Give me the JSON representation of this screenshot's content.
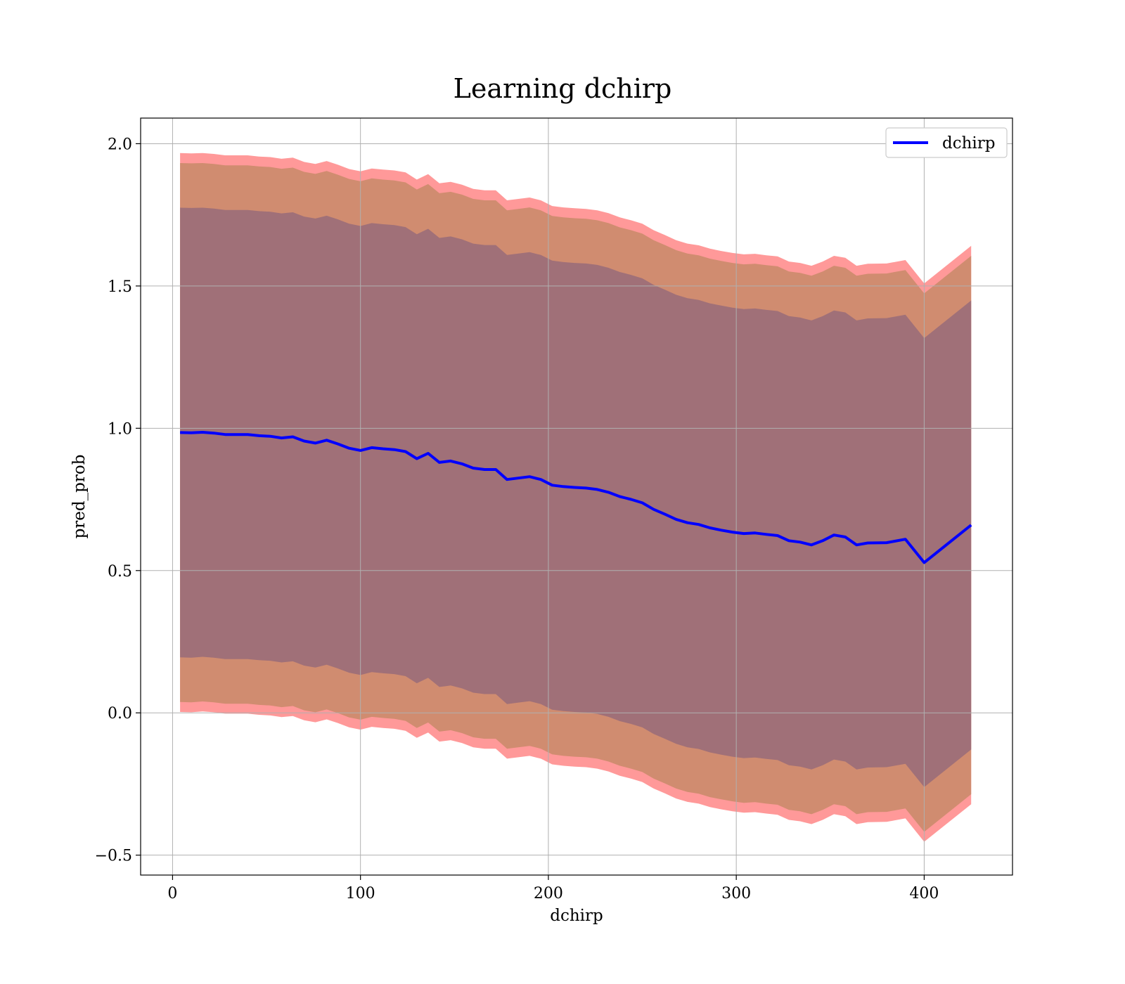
{
  "chart_data": {
    "type": "line",
    "title": "Learning dchirp",
    "xlabel": "dchirp",
    "ylabel": "pred_prob",
    "xlim": [
      -17,
      447
    ],
    "ylim": [
      -0.57,
      2.09
    ],
    "xticks": [
      0,
      100,
      200,
      300,
      400
    ],
    "xtick_labels": [
      "0",
      "100",
      "200",
      "300",
      "400"
    ],
    "yticks": [
      -0.5,
      0.0,
      0.5,
      1.0,
      1.5,
      2.0
    ],
    "ytick_labels": [
      "−0.5",
      "0.0",
      "0.5",
      "1.0",
      "1.5",
      "2.0"
    ],
    "grid": true,
    "legend": {
      "position": "top-right",
      "entries": [
        "dchirp"
      ]
    },
    "x": [
      4,
      10,
      16,
      22,
      28,
      34,
      40,
      46,
      52,
      58,
      64,
      70,
      76,
      82,
      88,
      94,
      100,
      106,
      112,
      118,
      124,
      130,
      136,
      142,
      148,
      154,
      160,
      166,
      172,
      178,
      184,
      190,
      196,
      202,
      208,
      214,
      220,
      226,
      232,
      238,
      244,
      250,
      256,
      262,
      268,
      274,
      280,
      286,
      292,
      298,
      304,
      310,
      316,
      322,
      328,
      334,
      340,
      346,
      352,
      358,
      364,
      370,
      380,
      390,
      400,
      425
    ],
    "series": [
      {
        "name": "dchirp",
        "color": "#0000ff",
        "values": [
          0.985,
          0.984,
          0.986,
          0.983,
          0.978,
          0.978,
          0.978,
          0.974,
          0.972,
          0.966,
          0.97,
          0.955,
          0.948,
          0.958,
          0.945,
          0.93,
          0.922,
          0.932,
          0.928,
          0.925,
          0.918,
          0.893,
          0.912,
          0.88,
          0.885,
          0.875,
          0.86,
          0.855,
          0.855,
          0.82,
          0.825,
          0.83,
          0.82,
          0.8,
          0.795,
          0.792,
          0.79,
          0.785,
          0.775,
          0.76,
          0.75,
          0.738,
          0.715,
          0.698,
          0.68,
          0.668,
          0.662,
          0.65,
          0.642,
          0.635,
          0.63,
          0.632,
          0.627,
          0.623,
          0.605,
          0.6,
          0.59,
          0.605,
          0.625,
          0.618,
          0.59,
          0.597,
          0.598,
          0.61,
          0.528,
          0.66
        ]
      }
    ],
    "bands": [
      {
        "name": "outer band",
        "color": "#ff9999",
        "upper": [
          1.967,
          1.966,
          1.967,
          1.964,
          1.959,
          1.959,
          1.959,
          1.955,
          1.953,
          1.947,
          1.951,
          1.936,
          1.929,
          1.939,
          1.926,
          1.911,
          1.903,
          1.913,
          1.909,
          1.906,
          1.899,
          1.874,
          1.893,
          1.861,
          1.866,
          1.856,
          1.841,
          1.836,
          1.836,
          1.801,
          1.806,
          1.811,
          1.801,
          1.781,
          1.776,
          1.773,
          1.771,
          1.766,
          1.756,
          1.741,
          1.731,
          1.719,
          1.696,
          1.679,
          1.661,
          1.649,
          1.643,
          1.631,
          1.623,
          1.616,
          1.611,
          1.613,
          1.608,
          1.604,
          1.586,
          1.581,
          1.571,
          1.586,
          1.606,
          1.599,
          1.571,
          1.578,
          1.579,
          1.591,
          1.509,
          1.641
        ],
        "lower": [
          0.003,
          0.002,
          0.005,
          0.002,
          -0.003,
          -0.003,
          -0.003,
          -0.007,
          -0.009,
          -0.015,
          -0.011,
          -0.026,
          -0.033,
          -0.023,
          -0.036,
          -0.051,
          -0.059,
          -0.049,
          -0.053,
          -0.056,
          -0.063,
          -0.088,
          -0.069,
          -0.101,
          -0.096,
          -0.106,
          -0.121,
          -0.126,
          -0.126,
          -0.161,
          -0.156,
          -0.151,
          -0.161,
          -0.181,
          -0.186,
          -0.189,
          -0.191,
          -0.196,
          -0.206,
          -0.221,
          -0.231,
          -0.243,
          -0.266,
          -0.283,
          -0.301,
          -0.313,
          -0.319,
          -0.331,
          -0.339,
          -0.346,
          -0.351,
          -0.349,
          -0.354,
          -0.358,
          -0.376,
          -0.381,
          -0.391,
          -0.376,
          -0.356,
          -0.363,
          -0.391,
          -0.384,
          -0.383,
          -0.371,
          -0.453,
          -0.321
        ]
      },
      {
        "name": "middle band",
        "color": "#d08c70",
        "upper": [
          1.932,
          1.931,
          1.932,
          1.929,
          1.924,
          1.924,
          1.924,
          1.92,
          1.918,
          1.912,
          1.916,
          1.901,
          1.894,
          1.904,
          1.891,
          1.876,
          1.868,
          1.878,
          1.874,
          1.871,
          1.864,
          1.839,
          1.858,
          1.826,
          1.831,
          1.821,
          1.806,
          1.801,
          1.801,
          1.766,
          1.771,
          1.776,
          1.766,
          1.746,
          1.741,
          1.738,
          1.736,
          1.731,
          1.721,
          1.706,
          1.696,
          1.684,
          1.661,
          1.644,
          1.626,
          1.614,
          1.608,
          1.596,
          1.588,
          1.581,
          1.576,
          1.578,
          1.573,
          1.569,
          1.551,
          1.546,
          1.536,
          1.551,
          1.571,
          1.564,
          1.536,
          1.543,
          1.544,
          1.556,
          1.474,
          1.606
        ],
        "lower": [
          0.038,
          0.037,
          0.04,
          0.037,
          0.032,
          0.032,
          0.032,
          0.028,
          0.026,
          0.02,
          0.024,
          0.009,
          0.002,
          0.012,
          -0.001,
          -0.016,
          -0.024,
          -0.014,
          -0.018,
          -0.021,
          -0.028,
          -0.053,
          -0.034,
          -0.066,
          -0.061,
          -0.071,
          -0.086,
          -0.091,
          -0.091,
          -0.126,
          -0.121,
          -0.116,
          -0.126,
          -0.146,
          -0.151,
          -0.154,
          -0.156,
          -0.161,
          -0.171,
          -0.186,
          -0.196,
          -0.208,
          -0.231,
          -0.248,
          -0.266,
          -0.278,
          -0.284,
          -0.296,
          -0.304,
          -0.311,
          -0.316,
          -0.314,
          -0.319,
          -0.323,
          -0.341,
          -0.346,
          -0.356,
          -0.341,
          -0.321,
          -0.328,
          -0.356,
          -0.349,
          -0.348,
          -0.336,
          -0.418,
          -0.286
        ]
      },
      {
        "name": "inner band",
        "color": "#a07078",
        "upper": [
          1.775,
          1.774,
          1.775,
          1.772,
          1.767,
          1.767,
          1.767,
          1.763,
          1.761,
          1.755,
          1.759,
          1.744,
          1.737,
          1.747,
          1.734,
          1.719,
          1.711,
          1.721,
          1.717,
          1.714,
          1.707,
          1.682,
          1.701,
          1.669,
          1.674,
          1.664,
          1.649,
          1.644,
          1.644,
          1.609,
          1.614,
          1.619,
          1.609,
          1.589,
          1.584,
          1.581,
          1.579,
          1.574,
          1.564,
          1.549,
          1.539,
          1.527,
          1.504,
          1.487,
          1.469,
          1.457,
          1.451,
          1.439,
          1.431,
          1.424,
          1.419,
          1.421,
          1.416,
          1.412,
          1.394,
          1.389,
          1.379,
          1.394,
          1.414,
          1.407,
          1.379,
          1.386,
          1.387,
          1.399,
          1.317,
          1.449
        ],
        "lower": [
          0.195,
          0.194,
          0.197,
          0.194,
          0.189,
          0.189,
          0.189,
          0.185,
          0.183,
          0.177,
          0.181,
          0.166,
          0.159,
          0.169,
          0.156,
          0.141,
          0.133,
          0.143,
          0.139,
          0.136,
          0.129,
          0.104,
          0.123,
          0.091,
          0.096,
          0.086,
          0.071,
          0.066,
          0.066,
          0.031,
          0.036,
          0.041,
          0.031,
          0.011,
          0.006,
          0.003,
          0.001,
          -0.004,
          -0.014,
          -0.029,
          -0.039,
          -0.051,
          -0.074,
          -0.091,
          -0.109,
          -0.121,
          -0.127,
          -0.139,
          -0.147,
          -0.154,
          -0.159,
          -0.157,
          -0.162,
          -0.166,
          -0.184,
          -0.189,
          -0.199,
          -0.184,
          -0.164,
          -0.171,
          -0.199,
          -0.192,
          -0.191,
          -0.179,
          -0.261,
          -0.129
        ]
      }
    ]
  }
}
